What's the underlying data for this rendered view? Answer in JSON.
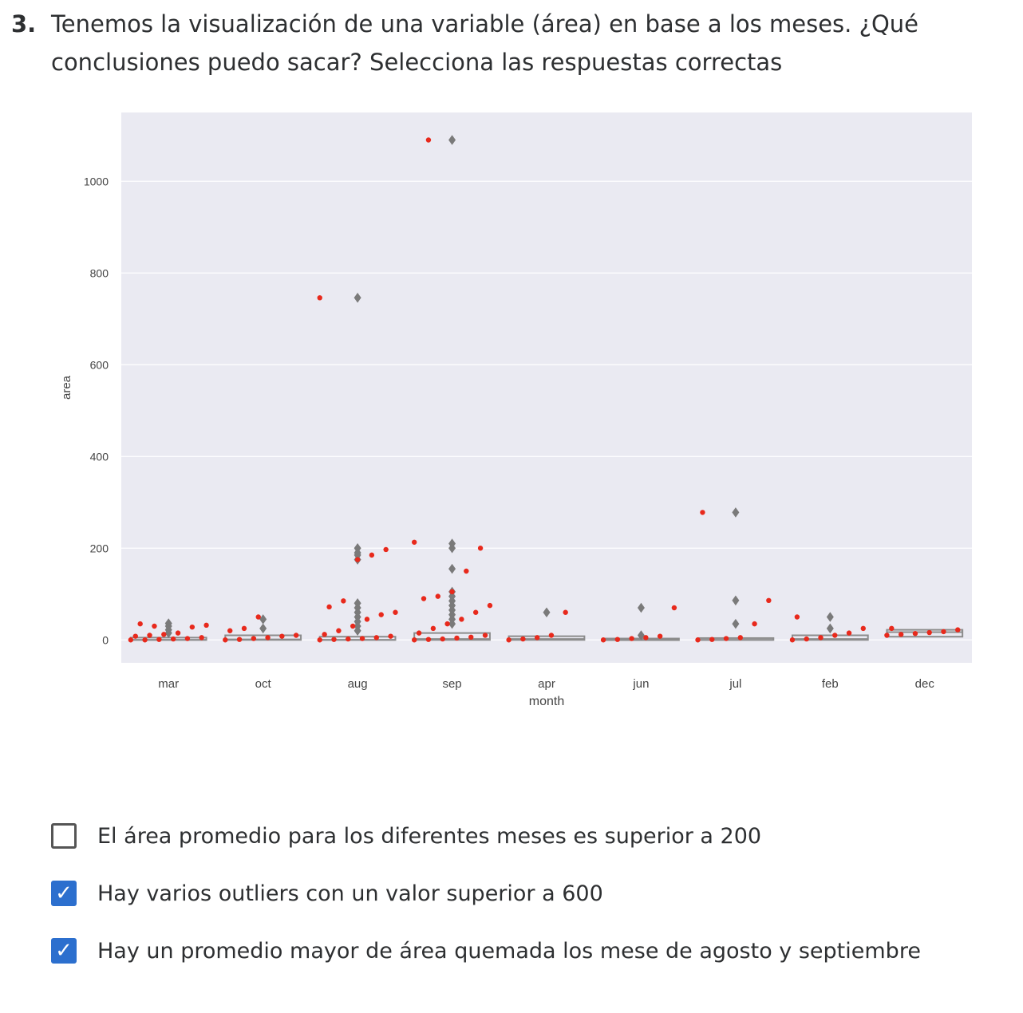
{
  "question": {
    "number": "3.",
    "text": "Tenemos la visualización de una variable (área) en base a los meses. ¿Qué conclusiones puedo sacar? Selecciona las respuestas correctas"
  },
  "chart_data": {
    "type": "boxplot+strip",
    "xlabel": "month",
    "ylabel": "area",
    "ylim": [
      -50,
      1150
    ],
    "yticks": [
      0,
      200,
      400,
      600,
      800,
      1000
    ],
    "grid": true,
    "categories": [
      "mar",
      "oct",
      "aug",
      "sep",
      "apr",
      "jun",
      "jul",
      "feb",
      "dec"
    ],
    "box_color": "#8c8c8c",
    "point_color": "#e8291c",
    "background": "#eaeaf2",
    "boxes": [
      {
        "month": "mar",
        "q1": 0,
        "median": 0,
        "q3": 5
      },
      {
        "month": "oct",
        "q1": 0,
        "median": 1,
        "q3": 10
      },
      {
        "month": "aug",
        "q1": 0,
        "median": 0,
        "q3": 7
      },
      {
        "month": "sep",
        "q1": 0,
        "median": 2,
        "q3": 15
      },
      {
        "month": "apr",
        "q1": 0,
        "median": 2,
        "q3": 8
      },
      {
        "month": "jun",
        "q1": 0,
        "median": 0,
        "q3": 3
      },
      {
        "month": "jul",
        "q1": 0,
        "median": 0,
        "q3": 4
      },
      {
        "month": "feb",
        "q1": 0,
        "median": 2,
        "q3": 10
      },
      {
        "month": "dec",
        "q1": 7,
        "median": 17,
        "q3": 22
      }
    ],
    "outliers": [
      {
        "month": "mar",
        "values": [
          15,
          22,
          30,
          36
        ]
      },
      {
        "month": "oct",
        "values": [
          25,
          45
        ]
      },
      {
        "month": "aug",
        "values": [
          20,
          30,
          40,
          50,
          60,
          70,
          80,
          175,
          185,
          190,
          200,
          746
        ]
      },
      {
        "month": "sep",
        "values": [
          35,
          45,
          55,
          65,
          75,
          85,
          95,
          105,
          155,
          200,
          210,
          1090
        ]
      },
      {
        "month": "apr",
        "values": [
          60
        ]
      },
      {
        "month": "jun",
        "values": [
          10,
          70
        ]
      },
      {
        "month": "jul",
        "values": [
          35,
          86,
          278
        ]
      },
      {
        "month": "feb",
        "values": [
          25,
          50
        ]
      }
    ],
    "points": [
      {
        "month": "mar",
        "values": [
          0,
          0,
          1,
          2,
          3,
          5,
          8,
          10,
          12,
          15,
          28,
          32,
          35,
          30
        ]
      },
      {
        "month": "oct",
        "values": [
          0,
          1,
          3,
          5,
          8,
          10,
          20,
          25,
          50
        ]
      },
      {
        "month": "aug",
        "values": [
          0,
          1,
          2,
          3,
          5,
          8,
          12,
          20,
          30,
          45,
          55,
          60,
          72,
          85,
          175,
          185,
          197,
          746
        ]
      },
      {
        "month": "sep",
        "values": [
          0,
          1,
          2,
          4,
          6,
          10,
          15,
          25,
          35,
          45,
          60,
          75,
          90,
          95,
          105,
          150,
          200,
          213,
          1090
        ]
      },
      {
        "month": "apr",
        "values": [
          0,
          2,
          5,
          10,
          60
        ]
      },
      {
        "month": "jun",
        "values": [
          0,
          1,
          3,
          5,
          8,
          70
        ]
      },
      {
        "month": "jul",
        "values": [
          0,
          1,
          3,
          5,
          35,
          86,
          278
        ]
      },
      {
        "month": "feb",
        "values": [
          0,
          2,
          5,
          10,
          15,
          25,
          50
        ]
      },
      {
        "month": "dec",
        "values": [
          10,
          12,
          14,
          16,
          18,
          22,
          25
        ]
      }
    ]
  },
  "options": [
    {
      "label": "El área promedio para los diferentes meses es superior a 200",
      "checked": false
    },
    {
      "label": "Hay varios outliers con un valor superior a 600",
      "checked": true
    },
    {
      "label": "Hay un promedio mayor de área quemada los mese de agosto y septiembre",
      "checked": true
    }
  ]
}
